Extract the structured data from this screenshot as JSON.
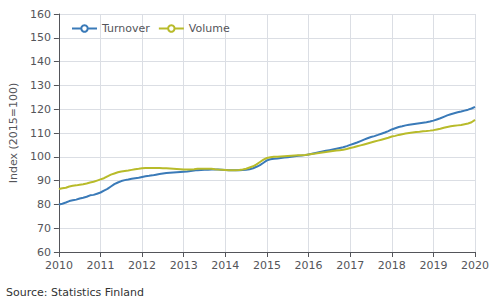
{
  "chart_data": {
    "type": "line",
    "ylabel": "Index (2015=100)",
    "annotation": "Source: Statistics Finland",
    "x": [
      2010.0,
      2010.083,
      2010.167,
      2010.25,
      2010.333,
      2010.417,
      2010.5,
      2010.583,
      2010.667,
      2010.75,
      2010.833,
      2010.917,
      2011.0,
      2011.083,
      2011.167,
      2011.25,
      2011.333,
      2011.417,
      2011.5,
      2011.583,
      2011.667,
      2011.75,
      2011.833,
      2011.917,
      2012.0,
      2012.083,
      2012.167,
      2012.25,
      2012.333,
      2012.417,
      2012.5,
      2012.583,
      2012.667,
      2012.75,
      2012.833,
      2012.917,
      2013.0,
      2013.083,
      2013.167,
      2013.25,
      2013.333,
      2013.417,
      2013.5,
      2013.583,
      2013.667,
      2013.75,
      2013.833,
      2013.917,
      2014.0,
      2014.083,
      2014.167,
      2014.25,
      2014.333,
      2014.417,
      2014.5,
      2014.583,
      2014.667,
      2014.75,
      2014.833,
      2014.917,
      2015.0,
      2015.083,
      2015.167,
      2015.25,
      2015.333,
      2015.417,
      2015.5,
      2015.583,
      2015.667,
      2015.75,
      2015.833,
      2015.917,
      2016.0,
      2016.083,
      2016.167,
      2016.25,
      2016.333,
      2016.417,
      2016.5,
      2016.583,
      2016.667,
      2016.75,
      2016.833,
      2016.917,
      2017.0,
      2017.083,
      2017.167,
      2017.25,
      2017.333,
      2017.417,
      2017.5,
      2017.583,
      2017.667,
      2017.75,
      2017.833,
      2017.917,
      2018.0,
      2018.083,
      2018.167,
      2018.25,
      2018.333,
      2018.417,
      2018.5,
      2018.583,
      2018.667,
      2018.75,
      2018.833,
      2018.917,
      2019.0,
      2019.083,
      2019.167,
      2019.25,
      2019.333,
      2019.417,
      2019.5,
      2019.583,
      2019.667,
      2019.75,
      2019.833,
      2019.917,
      2020.0
    ],
    "series": [
      {
        "name": "Turnover",
        "color": "#3a7ab8",
        "values": [
          80.0,
          80.3,
          80.8,
          81.4,
          81.7,
          82.0,
          82.5,
          82.8,
          83.2,
          83.8,
          84.0,
          84.5,
          85.0,
          85.8,
          86.5,
          87.5,
          88.5,
          89.2,
          89.8,
          90.2,
          90.5,
          90.8,
          91.0,
          91.2,
          91.5,
          91.8,
          92.0,
          92.2,
          92.5,
          92.8,
          93.0,
          93.2,
          93.3,
          93.4,
          93.5,
          93.6,
          93.7,
          93.8,
          94.0,
          94.2,
          94.4,
          94.5,
          94.6,
          94.6,
          94.7,
          94.7,
          94.7,
          94.6,
          94.5,
          94.4,
          94.4,
          94.4,
          94.4,
          94.5,
          94.6,
          94.8,
          95.2,
          95.8,
          96.5,
          97.5,
          98.5,
          99.0,
          99.2,
          99.3,
          99.5,
          99.7,
          99.8,
          100.0,
          100.2,
          100.4,
          100.5,
          100.7,
          101.0,
          101.3,
          101.6,
          101.9,
          102.2,
          102.5,
          102.8,
          103.1,
          103.4,
          103.7,
          104.0,
          104.5,
          105.0,
          105.5,
          106.0,
          106.6,
          107.2,
          107.8,
          108.3,
          108.7,
          109.2,
          109.7,
          110.2,
          110.8,
          111.5,
          112.0,
          112.5,
          112.8,
          113.2,
          113.5,
          113.7,
          113.9,
          114.1,
          114.3,
          114.5,
          114.8,
          115.2,
          115.7,
          116.2,
          116.8,
          117.4,
          117.9,
          118.3,
          118.7,
          119.0,
          119.4,
          119.8,
          120.3,
          121.0
        ]
      },
      {
        "name": "Volume",
        "color": "#b8bb2a",
        "values": [
          86.5,
          86.8,
          87.0,
          87.5,
          87.8,
          88.0,
          88.3,
          88.5,
          88.8,
          89.2,
          89.5,
          90.0,
          90.5,
          91.0,
          91.8,
          92.5,
          93.0,
          93.5,
          93.8,
          94.0,
          94.2,
          94.5,
          94.8,
          95.0,
          95.2,
          95.3,
          95.3,
          95.3,
          95.3,
          95.3,
          95.2,
          95.2,
          95.1,
          95.0,
          94.9,
          94.8,
          94.7,
          94.7,
          94.7,
          94.8,
          95.0,
          95.0,
          95.0,
          95.0,
          95.0,
          94.8,
          94.7,
          94.6,
          94.5,
          94.4,
          94.4,
          94.4,
          94.5,
          94.7,
          95.0,
          95.5,
          96.0,
          96.8,
          97.8,
          98.8,
          99.5,
          99.8,
          100.0,
          100.0,
          100.1,
          100.2,
          100.3,
          100.4,
          100.5,
          100.6,
          100.7,
          100.8,
          101.0,
          101.2,
          101.4,
          101.6,
          101.8,
          102.0,
          102.2,
          102.4,
          102.6,
          102.8,
          103.0,
          103.3,
          103.7,
          104.0,
          104.4,
          104.8,
          105.2,
          105.6,
          106.0,
          106.4,
          106.8,
          107.2,
          107.6,
          108.0,
          108.5,
          108.8,
          109.2,
          109.5,
          109.8,
          110.0,
          110.2,
          110.4,
          110.5,
          110.7,
          110.8,
          111.0,
          111.2,
          111.5,
          111.8,
          112.2,
          112.5,
          112.8,
          113.0,
          113.2,
          113.4,
          113.7,
          114.0,
          114.5,
          115.5
        ]
      }
    ],
    "xlim": [
      2010,
      2020
    ],
    "xticks": [
      2010,
      2011,
      2012,
      2013,
      2014,
      2015,
      2016,
      2017,
      2018,
      2019,
      2020
    ],
    "ylim": [
      60,
      160
    ],
    "yticks": [
      60,
      70,
      80,
      90,
      100,
      110,
      120,
      130,
      140,
      150,
      160
    ],
    "grid": true,
    "legend": "upper left"
  }
}
